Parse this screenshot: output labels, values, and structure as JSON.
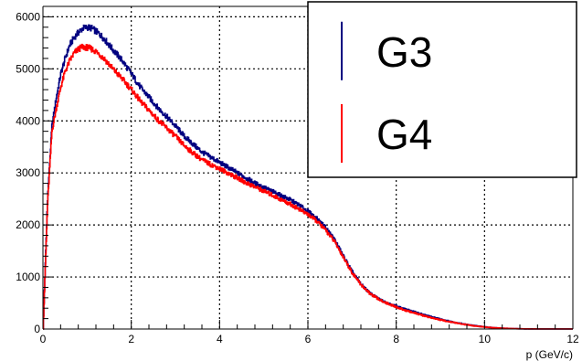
{
  "chart_data": {
    "type": "line",
    "xlabel": "p (GeV/c)",
    "ylabel": "",
    "xlim": [
      0,
      12
    ],
    "ylim": [
      0,
      6200
    ],
    "xticks": [
      0,
      2,
      4,
      6,
      8,
      10,
      12
    ],
    "yticks": [
      0,
      1000,
      2000,
      3000,
      4000,
      5000,
      6000
    ],
    "grid": true,
    "legend_position": "top-right",
    "x": [
      0.0,
      0.1,
      0.2,
      0.3,
      0.4,
      0.5,
      0.6,
      0.7,
      0.8,
      0.9,
      1.0,
      1.1,
      1.2,
      1.3,
      1.4,
      1.5,
      1.6,
      1.8,
      2.0,
      2.2,
      2.4,
      2.6,
      2.8,
      3.0,
      3.2,
      3.4,
      3.6,
      3.8,
      4.0,
      4.2,
      4.4,
      4.6,
      4.8,
      5.0,
      5.2,
      5.4,
      5.6,
      5.8,
      6.0,
      6.2,
      6.4,
      6.6,
      6.8,
      7.0,
      7.2,
      7.4,
      7.6,
      7.8,
      8.0,
      8.2,
      8.4,
      8.6,
      8.8,
      9.0,
      9.2,
      9.4,
      9.6,
      9.8,
      10.0,
      10.2,
      10.4,
      10.6,
      10.8,
      11.0,
      11.5,
      12.0
    ],
    "series": [
      {
        "name": "G3",
        "color": "#000080",
        "values": [
          0,
          2500,
          3900,
          4450,
          4900,
          5200,
          5450,
          5600,
          5700,
          5780,
          5800,
          5780,
          5720,
          5650,
          5560,
          5450,
          5350,
          5150,
          4900,
          4650,
          4450,
          4250,
          4080,
          3900,
          3700,
          3550,
          3400,
          3300,
          3200,
          3100,
          3000,
          2900,
          2800,
          2720,
          2640,
          2560,
          2480,
          2380,
          2260,
          2120,
          1950,
          1720,
          1400,
          1100,
          860,
          690,
          580,
          500,
          440,
          380,
          330,
          280,
          230,
          190,
          150,
          115,
          85,
          60,
          40,
          25,
          15,
          8,
          4,
          2,
          1,
          0
        ]
      },
      {
        "name": "G4",
        "color": "#ff0000",
        "values": [
          0,
          2400,
          3800,
          4250,
          4650,
          4950,
          5150,
          5300,
          5380,
          5420,
          5410,
          5380,
          5330,
          5260,
          5180,
          5080,
          4980,
          4800,
          4600,
          4380,
          4200,
          4020,
          3860,
          3700,
          3520,
          3380,
          3250,
          3160,
          3080,
          2990,
          2900,
          2810,
          2730,
          2650,
          2570,
          2480,
          2400,
          2300,
          2200,
          2070,
          1900,
          1680,
          1380,
          1080,
          850,
          680,
          570,
          490,
          420,
          360,
          310,
          260,
          215,
          175,
          140,
          108,
          80,
          56,
          38,
          24,
          14,
          8,
          4,
          2,
          1,
          0
        ]
      }
    ],
    "legend": [
      {
        "label": "G3",
        "color": "#000080"
      },
      {
        "label": "G4",
        "color": "#ff0000"
      }
    ]
  }
}
